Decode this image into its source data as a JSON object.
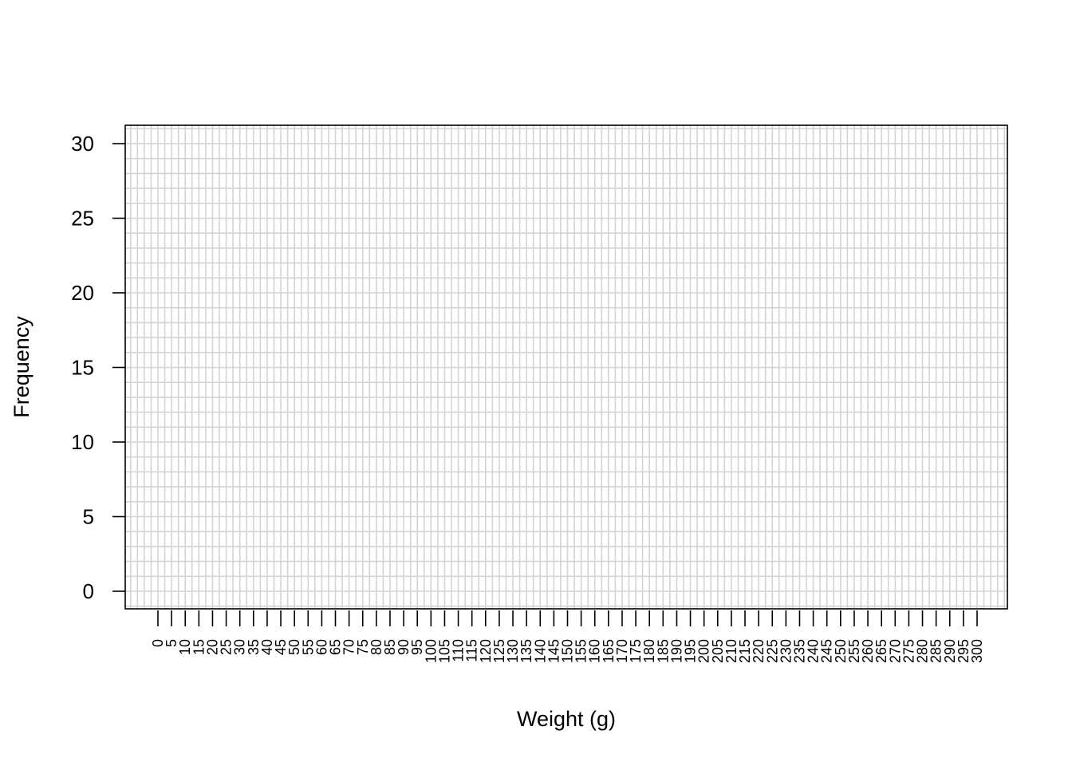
{
  "chart_data": {
    "type": "bar",
    "title": "",
    "xlabel": "Weight (g)",
    "ylabel": "Frequency",
    "x_ticks": [
      0,
      5,
      10,
      15,
      20,
      25,
      30,
      35,
      40,
      45,
      50,
      55,
      60,
      65,
      70,
      75,
      80,
      85,
      90,
      95,
      100,
      105,
      110,
      115,
      120,
      125,
      130,
      135,
      140,
      145,
      150,
      155,
      160,
      165,
      170,
      175,
      180,
      185,
      190,
      195,
      200,
      205,
      210,
      215,
      220,
      225,
      230,
      235,
      240,
      245,
      250,
      255,
      260,
      265,
      270,
      275,
      280,
      285,
      290,
      295,
      300
    ],
    "y_ticks": [
      0,
      5,
      10,
      15,
      20,
      25,
      30
    ],
    "xlim": [
      0,
      300
    ],
    "ylim": [
      0,
      30
    ],
    "categories": [],
    "values": [],
    "grid": true,
    "grid_color": "#d3d3d3",
    "legend": "none"
  }
}
